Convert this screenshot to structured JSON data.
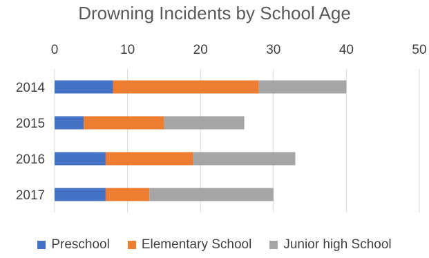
{
  "chart_data": {
    "type": "bar",
    "orientation": "horizontal",
    "stacked": true,
    "title": "Drowning Incidents by School Age",
    "xlabel": "",
    "ylabel": "",
    "categories": [
      "2014",
      "2015",
      "2016",
      "2017"
    ],
    "xlim": [
      0,
      50
    ],
    "xticks": [
      0,
      10,
      20,
      30,
      40,
      50
    ],
    "x_axis_position": "top",
    "grid": true,
    "legend_position": "bottom",
    "series": [
      {
        "name": "Preschool",
        "color": "#4472C4",
        "values": [
          8,
          4,
          7,
          7
        ]
      },
      {
        "name": "Elementary School",
        "color": "#ED7D31",
        "values": [
          20,
          11,
          12,
          6
        ]
      },
      {
        "name": "Junior high School",
        "color": "#A5A5A5",
        "values": [
          12,
          11,
          14,
          17
        ]
      }
    ]
  }
}
